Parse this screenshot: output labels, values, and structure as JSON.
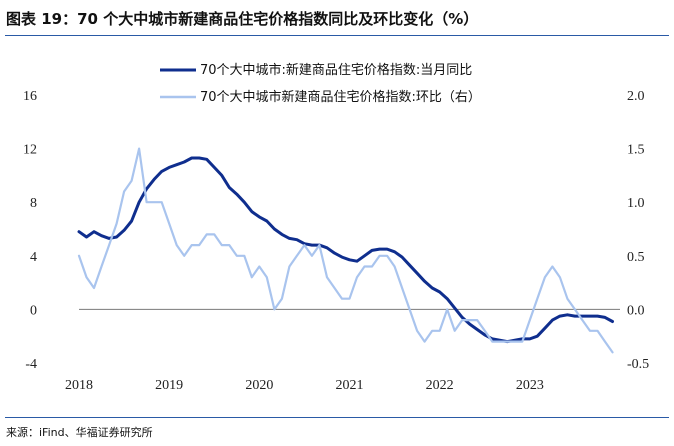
{
  "header": {
    "title": "图表 19：70 个大中城市新建商品住宅价格指数同比及环比变化（%）"
  },
  "footer": {
    "source": "来源：iFind、华福证券研究所"
  },
  "colors": {
    "yoy": "#0f2e8e",
    "mom": "#a9c4ee",
    "rule": "#2a5aa6"
  },
  "chart_data": {
    "type": "line",
    "x_ticks": [
      "2018",
      "2019",
      "2020",
      "2021",
      "2022",
      "2023"
    ],
    "y_left": {
      "ticks": [
        -4,
        0,
        4,
        8,
        12,
        16
      ],
      "ylim": [
        -4,
        16
      ]
    },
    "y_right": {
      "ticks": [
        "-0.5",
        "0.0",
        "0.5",
        "1.0",
        "1.5",
        "2.0"
      ],
      "ylim": [
        -0.5,
        2.0
      ]
    },
    "legend_position": "top",
    "series": [
      {
        "name": "70个大中城市:新建商品住宅价格指数:当月同比",
        "axis": "left",
        "x": [
          "2018-01",
          "2018-02",
          "2018-03",
          "2018-04",
          "2018-05",
          "2018-06",
          "2018-07",
          "2018-08",
          "2018-09",
          "2018-10",
          "2018-11",
          "2018-12",
          "2019-01",
          "2019-02",
          "2019-03",
          "2019-04",
          "2019-05",
          "2019-06",
          "2019-07",
          "2019-08",
          "2019-09",
          "2019-10",
          "2019-11",
          "2019-12",
          "2020-01",
          "2020-02",
          "2020-03",
          "2020-04",
          "2020-05",
          "2020-06",
          "2020-07",
          "2020-08",
          "2020-09",
          "2020-10",
          "2020-11",
          "2020-12",
          "2021-01",
          "2021-02",
          "2021-03",
          "2021-04",
          "2021-05",
          "2021-06",
          "2021-07",
          "2021-08",
          "2021-09",
          "2021-10",
          "2021-11",
          "2021-12",
          "2022-01",
          "2022-02",
          "2022-03",
          "2022-04",
          "2022-05",
          "2022-06",
          "2022-07",
          "2022-08",
          "2022-09",
          "2022-10",
          "2022-11",
          "2022-12",
          "2023-01",
          "2023-02",
          "2023-03",
          "2023-04",
          "2023-05",
          "2023-06",
          "2023-07",
          "2023-08",
          "2023-09",
          "2023-10",
          "2023-11",
          "2023-12"
        ],
        "values": [
          5.8,
          5.4,
          5.8,
          5.5,
          5.3,
          5.4,
          5.9,
          6.6,
          8.0,
          9.0,
          9.7,
          10.3,
          10.6,
          10.8,
          11.0,
          11.3,
          11.3,
          11.2,
          10.6,
          10.0,
          9.1,
          8.6,
          8.0,
          7.3,
          6.9,
          6.6,
          6.0,
          5.6,
          5.3,
          5.2,
          4.9,
          4.8,
          4.8,
          4.6,
          4.2,
          3.9,
          3.7,
          3.6,
          4.0,
          4.4,
          4.5,
          4.5,
          4.3,
          3.9,
          3.3,
          2.7,
          2.1,
          1.6,
          1.3,
          0.8,
          0.1,
          -0.6,
          -1.1,
          -1.5,
          -1.9,
          -2.2,
          -2.3,
          -2.4,
          -2.3,
          -2.2,
          -2.2,
          -2.0,
          -1.4,
          -0.8,
          -0.5,
          -0.4,
          -0.5,
          -0.5,
          -0.5,
          -0.5,
          -0.6,
          -0.9
        ]
      },
      {
        "name": "70个大中城市新建商品住宅价格指数:环比（右）",
        "axis": "right",
        "x": [
          "2018-01",
          "2018-02",
          "2018-03",
          "2018-04",
          "2018-05",
          "2018-06",
          "2018-07",
          "2018-08",
          "2018-09",
          "2018-10",
          "2018-11",
          "2018-12",
          "2019-01",
          "2019-02",
          "2019-03",
          "2019-04",
          "2019-05",
          "2019-06",
          "2019-07",
          "2019-08",
          "2019-09",
          "2019-10",
          "2019-11",
          "2019-12",
          "2020-01",
          "2020-02",
          "2020-03",
          "2020-04",
          "2020-05",
          "2020-06",
          "2020-07",
          "2020-08",
          "2020-09",
          "2020-10",
          "2020-11",
          "2020-12",
          "2021-01",
          "2021-02",
          "2021-03",
          "2021-04",
          "2021-05",
          "2021-06",
          "2021-07",
          "2021-08",
          "2021-09",
          "2021-10",
          "2021-11",
          "2021-12",
          "2022-01",
          "2022-02",
          "2022-03",
          "2022-04",
          "2022-05",
          "2022-06",
          "2022-07",
          "2022-08",
          "2022-09",
          "2022-10",
          "2022-11",
          "2022-12",
          "2023-01",
          "2023-02",
          "2023-03",
          "2023-04",
          "2023-05",
          "2023-06",
          "2023-07",
          "2023-08",
          "2023-09",
          "2023-10",
          "2023-11",
          "2023-12"
        ],
        "values": [
          0.5,
          0.3,
          0.2,
          0.4,
          0.6,
          0.8,
          1.1,
          1.2,
          1.5,
          1.0,
          1.0,
          1.0,
          0.8,
          0.6,
          0.5,
          0.6,
          0.6,
          0.7,
          0.7,
          0.6,
          0.6,
          0.5,
          0.5,
          0.3,
          0.4,
          0.3,
          0.0,
          0.1,
          0.4,
          0.5,
          0.6,
          0.5,
          0.6,
          0.3,
          0.2,
          0.1,
          0.1,
          0.3,
          0.4,
          0.4,
          0.5,
          0.5,
          0.4,
          0.2,
          0.0,
          -0.2,
          -0.3,
          -0.2,
          -0.2,
          0.0,
          -0.2,
          -0.1,
          -0.1,
          -0.1,
          -0.2,
          -0.3,
          -0.3,
          -0.3,
          -0.3,
          -0.3,
          -0.1,
          0.1,
          0.3,
          0.4,
          0.3,
          0.1,
          0.0,
          -0.1,
          -0.2,
          -0.2,
          -0.3,
          -0.4
        ]
      }
    ]
  }
}
